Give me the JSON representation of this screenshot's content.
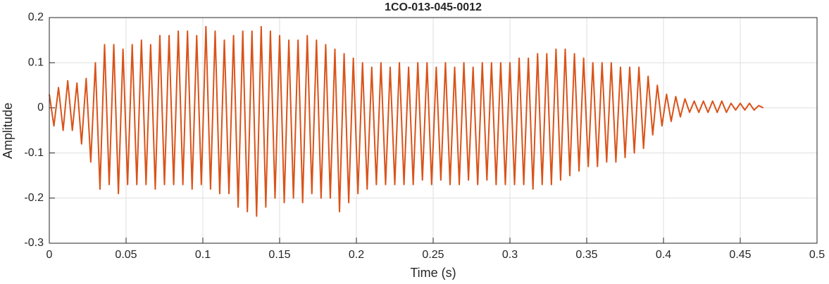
{
  "chart_data": {
    "type": "line",
    "title": "1CO-013-045-0012",
    "xlabel": "Time (s)",
    "ylabel": "Amplitude",
    "xlim": [
      0,
      0.5
    ],
    "xticks": [
      0,
      0.05,
      0.1,
      0.15,
      0.2,
      0.25,
      0.3,
      0.35,
      0.4,
      0.45,
      0.5
    ],
    "ylim": [
      -0.3,
      0.2
    ],
    "yticks": [
      -0.3,
      -0.2,
      -0.1,
      0,
      0.1,
      0.2
    ],
    "grid": true,
    "series": [
      {
        "color": "#d95319",
        "x": [
          0,
          0.003,
          0.006,
          0.009,
          0.012,
          0.015,
          0.018,
          0.021,
          0.024,
          0.027,
          0.03,
          0.033,
          0.036,
          0.039,
          0.042,
          0.045,
          0.048,
          0.051,
          0.054,
          0.057,
          0.06,
          0.063,
          0.066,
          0.069,
          0.072,
          0.075,
          0.078,
          0.081,
          0.084,
          0.087,
          0.09,
          0.093,
          0.096,
          0.099,
          0.102,
          0.105,
          0.108,
          0.111,
          0.114,
          0.117,
          0.12,
          0.123,
          0.126,
          0.129,
          0.132,
          0.135,
          0.138,
          0.141,
          0.144,
          0.147,
          0.15,
          0.153,
          0.156,
          0.159,
          0.162,
          0.165,
          0.168,
          0.171,
          0.174,
          0.177,
          0.18,
          0.183,
          0.186,
          0.189,
          0.192,
          0.195,
          0.198,
          0.201,
          0.204,
          0.207,
          0.21,
          0.213,
          0.216,
          0.219,
          0.222,
          0.225,
          0.228,
          0.231,
          0.234,
          0.237,
          0.24,
          0.243,
          0.246,
          0.249,
          0.252,
          0.255,
          0.258,
          0.261,
          0.264,
          0.267,
          0.27,
          0.273,
          0.276,
          0.279,
          0.282,
          0.285,
          0.288,
          0.291,
          0.294,
          0.297,
          0.3,
          0.303,
          0.306,
          0.309,
          0.312,
          0.315,
          0.318,
          0.321,
          0.324,
          0.327,
          0.33,
          0.333,
          0.336,
          0.339,
          0.342,
          0.345,
          0.348,
          0.351,
          0.354,
          0.357,
          0.36,
          0.363,
          0.366,
          0.369,
          0.372,
          0.375,
          0.378,
          0.381,
          0.384,
          0.387,
          0.39,
          0.393,
          0.396,
          0.399,
          0.402,
          0.405,
          0.408,
          0.411,
          0.414,
          0.417,
          0.42,
          0.423,
          0.426,
          0.429,
          0.432,
          0.435,
          0.438,
          0.441,
          0.444,
          0.447,
          0.45,
          0.453,
          0.456,
          0.459,
          0.462,
          0.465
        ],
        "values": [
          0.03,
          -0.04,
          0.045,
          -0.05,
          0.06,
          -0.05,
          0.055,
          -0.08,
          0.065,
          -0.12,
          0.1,
          -0.18,
          0.14,
          -0.17,
          0.14,
          -0.19,
          0.13,
          -0.17,
          0.14,
          -0.17,
          0.15,
          -0.17,
          0.14,
          -0.18,
          0.16,
          -0.17,
          0.16,
          -0.17,
          0.17,
          -0.17,
          0.17,
          -0.18,
          0.16,
          -0.17,
          0.18,
          -0.18,
          0.17,
          -0.19,
          0.15,
          -0.19,
          0.16,
          -0.22,
          0.17,
          -0.23,
          0.17,
          -0.24,
          0.18,
          -0.22,
          0.17,
          -0.2,
          0.16,
          -0.21,
          0.15,
          -0.2,
          0.15,
          -0.21,
          0.16,
          -0.19,
          0.15,
          -0.2,
          0.14,
          -0.2,
          0.13,
          -0.23,
          0.12,
          -0.21,
          0.11,
          -0.19,
          0.1,
          -0.18,
          0.09,
          -0.17,
          0.1,
          -0.17,
          0.09,
          -0.17,
          0.1,
          -0.17,
          0.09,
          -0.17,
          0.1,
          -0.16,
          0.1,
          -0.17,
          0.09,
          -0.16,
          0.1,
          -0.17,
          0.09,
          -0.17,
          0.1,
          -0.16,
          0.09,
          -0.17,
          0.1,
          -0.16,
          0.1,
          -0.17,
          0.1,
          -0.17,
          0.1,
          -0.17,
          0.11,
          -0.17,
          0.11,
          -0.18,
          0.12,
          -0.17,
          0.12,
          -0.17,
          0.13,
          -0.16,
          0.13,
          -0.15,
          0.12,
          -0.14,
          0.11,
          -0.13,
          0.1,
          -0.13,
          0.1,
          -0.12,
          0.1,
          -0.12,
          0.09,
          -0.11,
          0.09,
          -0.1,
          0.09,
          -0.09,
          0.07,
          -0.06,
          0.05,
          -0.04,
          0.03,
          -0.03,
          0.025,
          -0.02,
          0.02,
          -0.01,
          0.015,
          -0.01,
          0.015,
          -0.01,
          0.015,
          -0.01,
          0.015,
          -0.01,
          0.01,
          -0.005,
          0.01,
          -0.005,
          0.01,
          -0.005,
          0.005,
          0
        ]
      }
    ]
  }
}
